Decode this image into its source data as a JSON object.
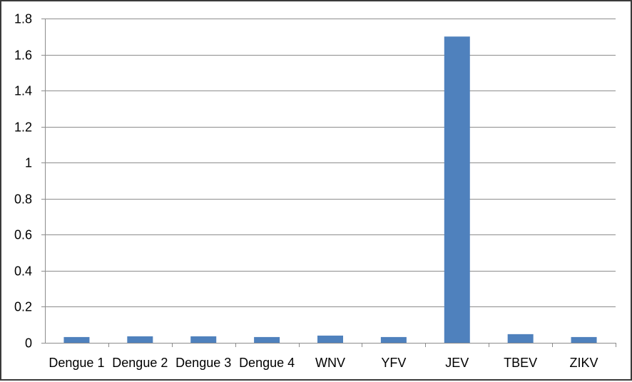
{
  "chart_data": {
    "type": "bar",
    "title": "",
    "xlabel": "",
    "ylabel": "",
    "categories": [
      "Dengue 1",
      "Dengue 2",
      "Dengue 3",
      "Dengue 4",
      "WNV",
      "YFV",
      "JEV",
      "TBEV",
      "ZIKV"
    ],
    "values": [
      0.032,
      0.036,
      0.036,
      0.032,
      0.04,
      0.032,
      1.7,
      0.048,
      0.032
    ],
    "ylim": [
      0,
      1.8
    ],
    "yticks": [
      0,
      0.2,
      0.4,
      0.6,
      0.8,
      1,
      1.2,
      1.4,
      1.6,
      1.8
    ],
    "grid": true,
    "legend": "none",
    "bar_color": "#4f81bd"
  }
}
